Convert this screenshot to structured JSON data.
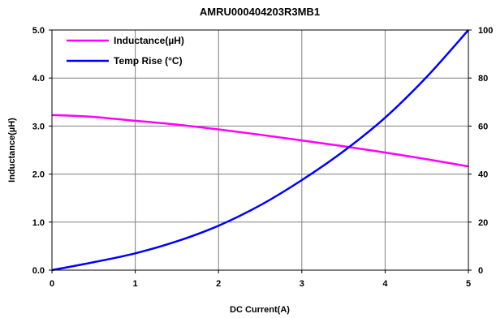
{
  "chart_data": {
    "type": "line",
    "title": "AMRU000404203R3MB1",
    "xlabel": "DC Current(A)",
    "ylabel": "Inductance(µH)",
    "y2label": "",
    "xlim": [
      0,
      5
    ],
    "ylim": [
      0,
      5
    ],
    "y2lim": [
      0,
      100
    ],
    "x_ticks": [
      "0",
      "1",
      "2",
      "3",
      "4",
      "5"
    ],
    "y_ticks": [
      "0.0",
      "1.0",
      "2.0",
      "3.0",
      "4.0",
      "5.0"
    ],
    "y2_ticks": [
      "0",
      "20",
      "40",
      "60",
      "80",
      "100"
    ],
    "grid": true,
    "legend_position": "top-left",
    "series": [
      {
        "name": "Inductance(µH)",
        "axis": "left",
        "color": "#ff00ff",
        "x": [
          0,
          0.5,
          1,
          1.5,
          2,
          2.5,
          3,
          3.5,
          4,
          4.5,
          5
        ],
        "values": [
          3.23,
          3.19,
          3.11,
          3.03,
          2.93,
          2.82,
          2.7,
          2.58,
          2.45,
          2.31,
          2.16
        ]
      },
      {
        "name": "Temp Rise (°C)",
        "axis": "right",
        "color": "#0000ff",
        "x": [
          0,
          0.5,
          1,
          1.5,
          2,
          2.5,
          3,
          3.5,
          4,
          4.5,
          5
        ],
        "values": [
          0,
          3.3,
          7,
          12,
          18.5,
          27,
          37.5,
          49.5,
          63.5,
          80.5,
          100
        ]
      }
    ]
  }
}
